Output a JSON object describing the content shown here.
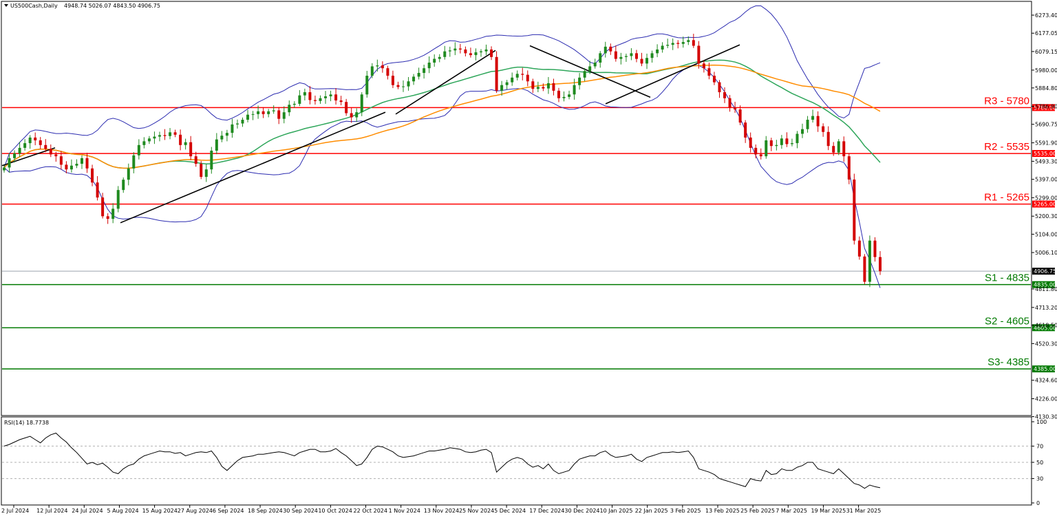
{
  "header": {
    "symbol_label": "US500Cash,Daily",
    "ohlc_label": "4948.74 5026.07 4843.50 4906.75",
    "rsi_label": "RSI(14) 18.7738"
  },
  "colors": {
    "bull": "#1f8a1f",
    "bear": "#d40000",
    "resistance": "#ff0000",
    "support": "#007a00",
    "bollinger": "#2b2bb0",
    "sma50": "#2ea65a",
    "sma100": "#ff8c00",
    "trendline": "#000000"
  },
  "chart_data": {
    "type": "candlestick",
    "y_axis_ticks": [
      "6273.40",
      "6177.05",
      "6079.15",
      "5980.00",
      "5884.80",
      "5786.90",
      "5690.75",
      "5591.90",
      "5493.30",
      "5397.00",
      "5299.00",
      "5200.30",
      "5104.00",
      "5006.10",
      "4811.80",
      "4713.20",
      "4618.50",
      "4520.30",
      "4324.60",
      "4226.00",
      "4130.30"
    ],
    "ylim": [
      4130.3,
      6300
    ],
    "x_axis_ticks": [
      "2 Jul 2024",
      "12 Jul 2024",
      "24 Jul 2024",
      "5 Aug 2024",
      "15 Aug 2024",
      "27 Aug 2024",
      "6 Sep 2024",
      "18 Sep 2024",
      "30 Sep 2024",
      "10 Oct 2024",
      "22 Oct 2024",
      "1 Nov 2024",
      "13 Nov 2024",
      "25 Nov 2024",
      "5 Dec 2024",
      "17 Dec 2024",
      "30 Dec 2024",
      "10 Jan 2025",
      "22 Jan 2025",
      "3 Feb 2025",
      "13 Feb 2025",
      "25 Feb 2025",
      "7 Mar 2025",
      "19 Mar 2025",
      "31 Mar 2025"
    ],
    "current_price": {
      "value": 4906.75,
      "label": "4906.75"
    },
    "levels": [
      {
        "name": "R3 - 5780",
        "value": 5780,
        "tag": "5780.00",
        "kind": "resistance"
      },
      {
        "name": "R2 - 5535",
        "value": 5535,
        "tag": "5535.00",
        "kind": "resistance"
      },
      {
        "name": "R1 - 5265",
        "value": 5265,
        "tag": "5265.00",
        "kind": "resistance"
      },
      {
        "name": "S1 - 4835",
        "value": 4835,
        "tag": "4835.00",
        "kind": "support"
      },
      {
        "name": "S2 - 4605",
        "value": 4605,
        "tag": "4605.00",
        "kind": "support"
      },
      {
        "name": "S3- 4385",
        "value": 4385,
        "tag": "4385.00",
        "kind": "support"
      }
    ],
    "close_path": [
      5460,
      5510,
      5535,
      5565,
      5590,
      5620,
      5605,
      5580,
      5560,
      5530,
      5520,
      5475,
      5450,
      5470,
      5480,
      5510,
      5455,
      5380,
      5300,
      5200,
      5186,
      5240,
      5340,
      5395,
      5455,
      5525,
      5580,
      5600,
      5615,
      5625,
      5633,
      5628,
      5648,
      5635,
      5580,
      5595,
      5520,
      5480,
      5410,
      5450,
      5550,
      5610,
      5630,
      5645,
      5690,
      5695,
      5715,
      5742,
      5745,
      5760,
      5745,
      5760,
      5765,
      5720,
      5755,
      5795,
      5800,
      5845,
      5862,
      5820,
      5815,
      5830,
      5840,
      5850,
      5818,
      5810,
      5750,
      5728,
      5755,
      5850,
      5950,
      6000,
      6005,
      5990,
      5950,
      5900,
      5890,
      5893,
      5920,
      5945,
      5965,
      5990,
      6020,
      6040,
      6050,
      6080,
      6085,
      6095,
      6090,
      6070,
      6060,
      6075,
      6080,
      6090,
      6050,
      5870,
      5900,
      5915,
      5940,
      5960,
      5955,
      5920,
      5880,
      5890,
      5882,
      5910,
      5870,
      5830,
      5837,
      5850,
      5900,
      5940,
      5975,
      6000,
      6020,
      6070,
      6105,
      6080,
      6040,
      6050,
      6055,
      6070,
      6040,
      6015,
      6045,
      6070,
      6090,
      6110,
      6115,
      6125,
      6120,
      6130,
      6140,
      6110,
      6015,
      5990,
      5950,
      5915,
      5862,
      5830,
      5780,
      5770,
      5700,
      5620,
      5565,
      5530,
      5520,
      5605,
      5575,
      5580,
      5615,
      5585,
      5590,
      5640,
      5665,
      5715,
      5735,
      5680,
      5650,
      5575,
      5540,
      5600,
      5520,
      5396,
      5070,
      4985,
      4850,
      5070,
      4982,
      4906.75
    ],
    "rsi": {
      "ylim": [
        0,
        100
      ],
      "ticks": [
        100,
        70,
        50,
        30,
        0
      ],
      "values": [
        70,
        72,
        75,
        78,
        80,
        82,
        78,
        74,
        80,
        84,
        86,
        80,
        75,
        68,
        62,
        55,
        48,
        50,
        47,
        49,
        44,
        38,
        36,
        42,
        46,
        48,
        54,
        58,
        60,
        62,
        64,
        63,
        63,
        61,
        62,
        58,
        60,
        62,
        63,
        62,
        64,
        56,
        45,
        40,
        46,
        52,
        56,
        57,
        58,
        60,
        60,
        61,
        62,
        63,
        62,
        60,
        58,
        62,
        64,
        66,
        66,
        63,
        63,
        64,
        67,
        62,
        58,
        52,
        46,
        48,
        56,
        66,
        70,
        69,
        66,
        63,
        58,
        56,
        57,
        58,
        60,
        62,
        64,
        64,
        65,
        66,
        68,
        67,
        66,
        63,
        62,
        63,
        65,
        66,
        62,
        38,
        44,
        50,
        54,
        56,
        54,
        48,
        44,
        46,
        42,
        48,
        40,
        36,
        38,
        40,
        48,
        54,
        56,
        58,
        58,
        62,
        64,
        59,
        56,
        57,
        58,
        60,
        54,
        51,
        56,
        58,
        60,
        62,
        62,
        63,
        62,
        63,
        64,
        56,
        42,
        40,
        38,
        35,
        30,
        28,
        26,
        24,
        22,
        20,
        30,
        28,
        27,
        40,
        35,
        36,
        42,
        40,
        40,
        44,
        46,
        50,
        50,
        42,
        40,
        38,
        36,
        42,
        36,
        30,
        24,
        22,
        18,
        22,
        20,
        18.77
      ]
    }
  }
}
